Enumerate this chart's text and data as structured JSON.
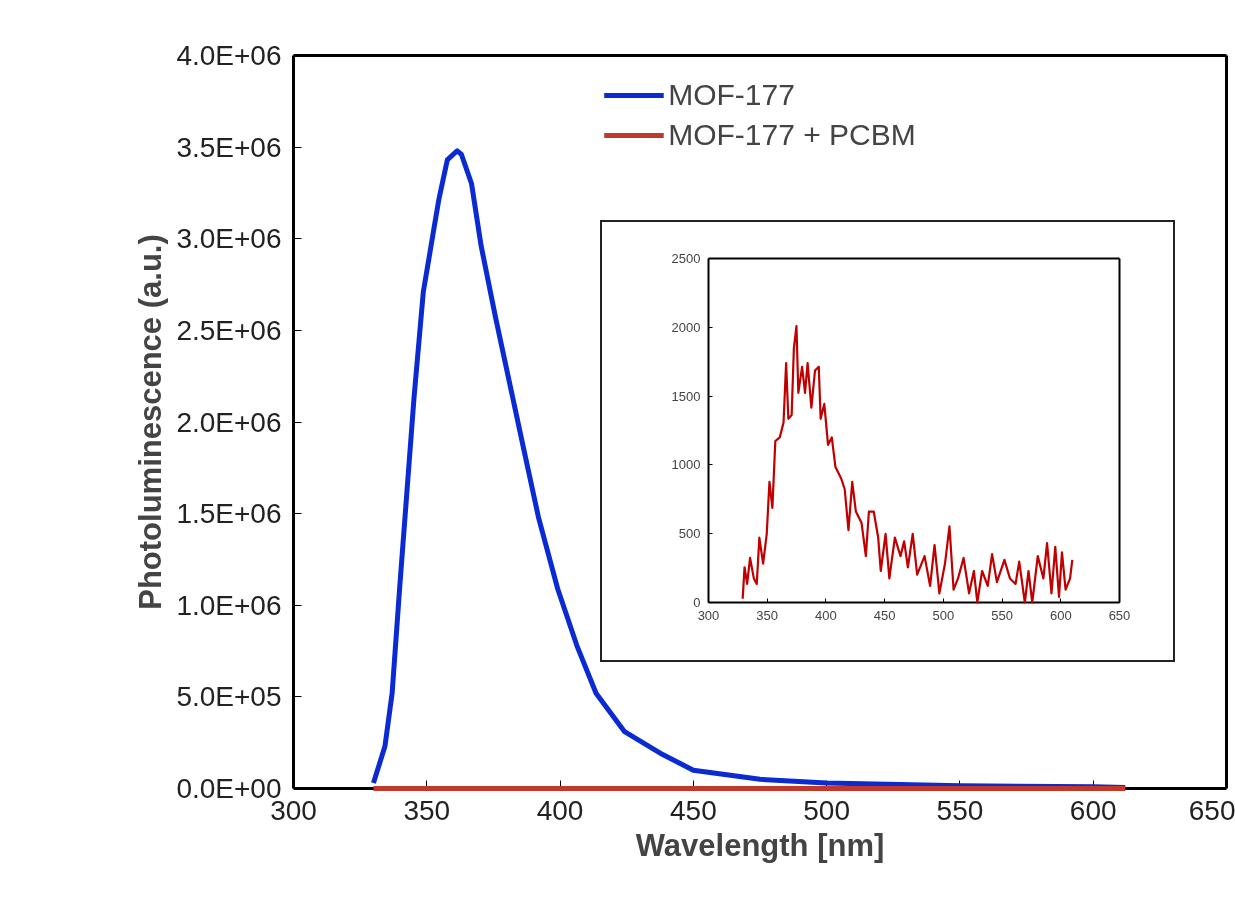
{
  "chart_data": [
    {
      "type": "line",
      "xlabel": "Wavelength [nm]",
      "ylabel": "Photoluminescence (a.u.)",
      "xlim": [
        300,
        650
      ],
      "xticks": [
        300,
        350,
        400,
        450,
        500,
        550,
        600,
        650
      ],
      "ylim": [
        0,
        4000000
      ],
      "yticks": [
        {
          "value": 0,
          "label": "0.0E+00"
        },
        {
          "value": 500000,
          "label": "5.0E+05"
        },
        {
          "value": 1000000,
          "label": "1.0E+06"
        },
        {
          "value": 1500000,
          "label": "1.5E+06"
        },
        {
          "value": 2000000,
          "label": "2.0E+06"
        },
        {
          "value": 2500000,
          "label": "2.5E+06"
        },
        {
          "value": 3000000,
          "label": "3.0E+06"
        },
        {
          "value": 3500000,
          "label": "3.5E+06"
        },
        {
          "value": 4000000,
          "label": "4.0E+06"
        }
      ],
      "grid": false,
      "legend": "top",
      "line_style": "solid",
      "series": [
        {
          "name": "MOF-177",
          "color": "#0a2ad2",
          "x": [
            330,
            334.3,
            337,
            339.8,
            342.5,
            345.2,
            348.7,
            352.5,
            354.6,
            357.7,
            361.4,
            363,
            366.8,
            370.4,
            375.8,
            381.1,
            386.4,
            391.9,
            399.1,
            406.3,
            413.5,
            424.2,
            438.5,
            450,
            475,
            500,
            550,
            600,
            612
          ],
          "values": [
            30000,
            230000,
            520000,
            1090000,
            1610000,
            2130000,
            2710000,
            3040000,
            3220000,
            3430000,
            3480000,
            3460000,
            3300000,
            2960000,
            2570000,
            2210000,
            1850000,
            1480000,
            1090000,
            780000,
            520000,
            310000,
            185000,
            100000,
            50000,
            30000,
            15000,
            10000,
            5000
          ]
        },
        {
          "name": "MOF-177 + PCBM",
          "color": "#c0392b",
          "x": [
            330,
            400,
            500,
            612
          ],
          "values": [
            0,
            0,
            0,
            0
          ]
        }
      ]
    },
    {
      "type": "line",
      "xlim": [
        300,
        650
      ],
      "xticks": [
        300,
        350,
        400,
        450,
        500,
        550,
        600,
        650
      ],
      "ylim": [
        0,
        2500
      ],
      "yticks": [
        0,
        500,
        1000,
        1500,
        2000,
        2500
      ],
      "grid": false,
      "legend": false,
      "line_style": "solid",
      "series": [
        {
          "color": "#c00000",
          "x": [
            329.1,
            330.7,
            332.9,
            335.4,
            338.6,
            341.1,
            343.3,
            346.5,
            349.6,
            351.9,
            354.4,
            356.9,
            360.7,
            363.9,
            366.1,
            368,
            370.8,
            372.7,
            374.9,
            376.5,
            379.7,
            382.2,
            384.4,
            387.6,
            390.7,
            393.9,
            395.5,
            398.6,
            401.8,
            405,
            408.1,
            412.9,
            416,
            419.2,
            422.4,
            425.5,
            430.3,
            434,
            436.6,
            440.7,
            444.5,
            446.7,
            450.8,
            454,
            458.7,
            463.5,
            466.6,
            469.8,
            473.9,
            477.7,
            484,
            488.7,
            492.5,
            496.6,
            501.4,
            505.2,
            508.7,
            512.5,
            517.2,
            521.9,
            526,
            528.9,
            533,
            537.8,
            541.5,
            545.6,
            552,
            556.7,
            561.5,
            564.6,
            569.4,
            572.5,
            575.7,
            580.4,
            585.2,
            588.3,
            592.1,
            595.3,
            598.5,
            601,
            604.1,
            607.9,
            609.8
          ],
          "values": [
            27,
            256,
            135,
            324,
            175,
            135,
            472,
            283,
            499,
            877,
            688,
            1173,
            1200,
            1308,
            1740,
            1335,
            1362,
            1847,
            2009,
            1524,
            1713,
            1524,
            1740,
            1416,
            1686,
            1713,
            1335,
            1443,
            1146,
            1200,
            984,
            903,
            823,
            526,
            877,
            661,
            580,
            337,
            661,
            661,
            472,
            229,
            499,
            175,
            472,
            337,
            445,
            256,
            499,
            202,
            337,
            121,
            418,
            67,
            283,
            553,
            94,
            175,
            324,
            67,
            229,
            0,
            229,
            121,
            351,
            148,
            310,
            175,
            135,
            297,
            0,
            229,
            0,
            337,
            175,
            432,
            67,
            405,
            40,
            364,
            94,
            175,
            310
          ]
        }
      ]
    }
  ]
}
